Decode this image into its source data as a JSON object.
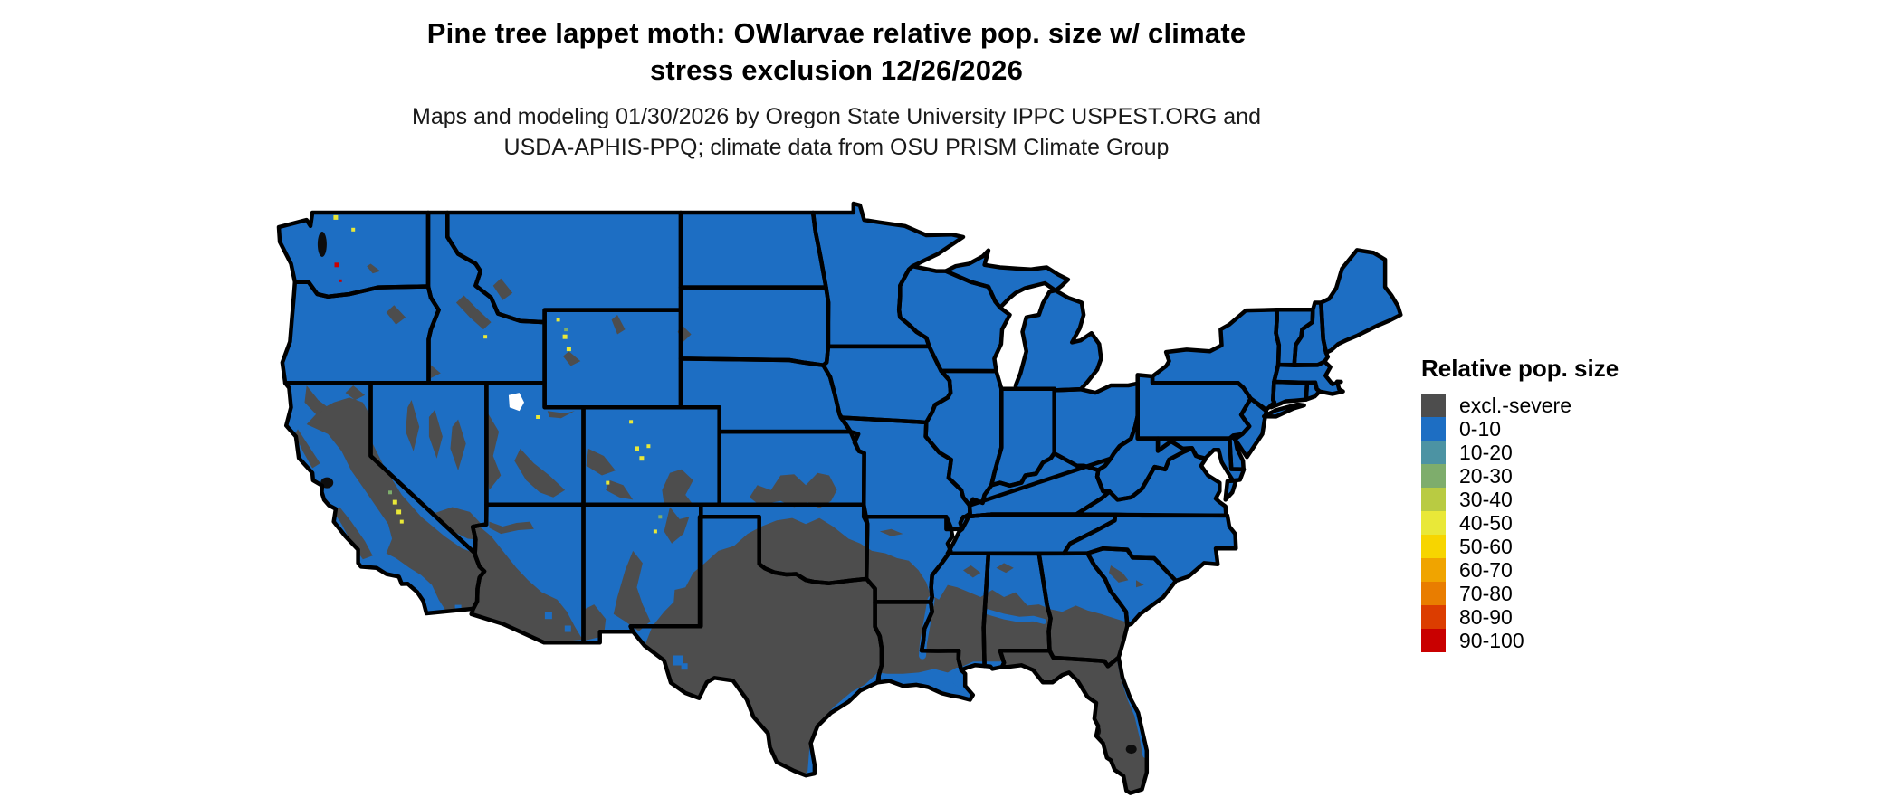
{
  "title": {
    "line1": "Pine tree lappet moth: OWlarvae relative pop. size w/ climate",
    "line2": "stress exclusion 12/26/2026"
  },
  "subtitle": {
    "line1": "Maps and modeling 01/30/2026 by Oregon State University IPPC USPEST.ORG and",
    "line2": "USDA-APHIS-PPQ; climate data from OSU PRISM Climate Group"
  },
  "legend": {
    "title": "Relative pop. size",
    "items": [
      {
        "label": "excl.-severe",
        "color": "#4D4D4D"
      },
      {
        "label": "0-10",
        "color": "#1D6EC3"
      },
      {
        "label": "10-20",
        "color": "#4C93A3"
      },
      {
        "label": "20-30",
        "color": "#7EAD6C"
      },
      {
        "label": "30-40",
        "color": "#B9CB42"
      },
      {
        "label": "40-50",
        "color": "#E9E838"
      },
      {
        "label": "50-60",
        "color": "#F7D500"
      },
      {
        "label": "60-70",
        "color": "#F0A400"
      },
      {
        "label": "70-80",
        "color": "#E97D00"
      },
      {
        "label": "80-90",
        "color": "#DC3D00"
      },
      {
        "label": "90-100",
        "color": "#C90000"
      }
    ]
  },
  "map": {
    "background": "#FFFFFF",
    "land_color": "#1D6EC3",
    "excluded_color": "#4D4D4D",
    "border_color": "#000000",
    "water_detail_color": "#0D0D0D",
    "speck_colors": {
      "y": "#E9E838",
      "g": "#7EAD6C",
      "r": "#C90000",
      "b": "#1D6EC3",
      "gr": "#4D4D4D",
      "w": "#FFFFFF"
    }
  },
  "chart_data": {
    "type": "heatmap",
    "title": "Pine tree lappet moth: OWlarvae relative pop. size w/ climate stress exclusion 12/26/2026",
    "legend_position": "right",
    "categories": [
      "excl.-severe",
      "0-10",
      "10-20",
      "20-30",
      "30-40",
      "40-50",
      "50-60",
      "60-70",
      "70-80",
      "80-90",
      "90-100"
    ],
    "category_colors": [
      "#4D4D4D",
      "#1D6EC3",
      "#4C93A3",
      "#7EAD6C",
      "#B9CB42",
      "#E9E838",
      "#F7D500",
      "#F0A400",
      "#E97D00",
      "#DC3D00",
      "#C90000"
    ],
    "dominant_value_most_of_us": "0-10",
    "excluded_areas_shown": "Texas, southern Oklahoma, southern Kansas fringe, SE Colorado, southern New Mexico, southern/western Arizona, Sierra Nevada and SE California, Great Basin ranges, western Utah, Louisiana, southern Arkansas, southern Mississippi, southern Alabama, southern Georgia, all of Florida"
  }
}
